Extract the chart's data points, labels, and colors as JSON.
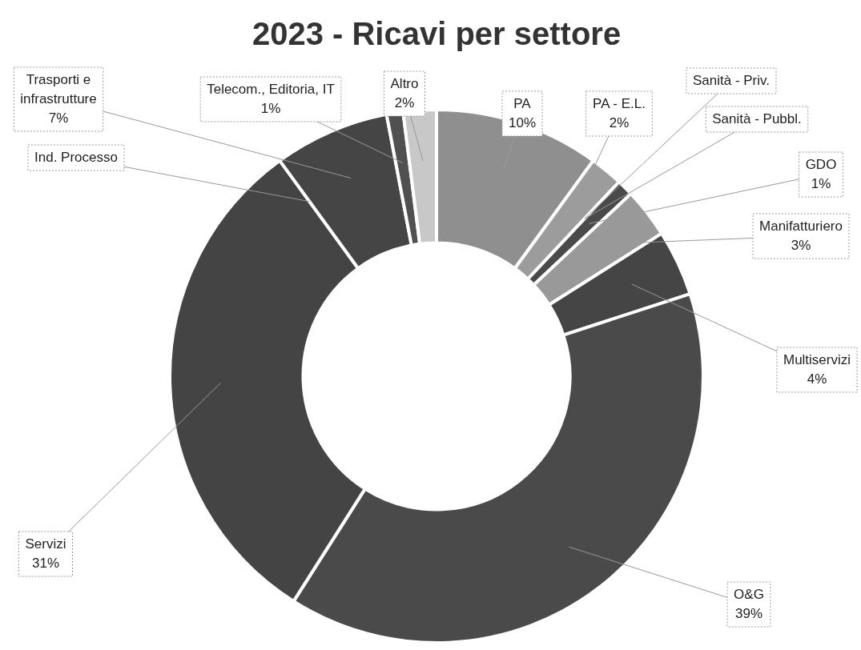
{
  "chart_data": {
    "type": "donut",
    "title": "2023 - Ricavi per settore",
    "categories": [
      "PA",
      "PA - E.L.",
      "Sanità - Priv.",
      "Sanità - Pubbl.",
      "GDO",
      "Manifatturiero",
      "Multiservizi",
      "O&G",
      "Servizi",
      "Ind. Processo",
      "Trasporti e infrastrutture",
      "Telecom., Editoria, IT",
      "Altro"
    ],
    "values": [
      10,
      2,
      0,
      0,
      1,
      3,
      4,
      39,
      31,
      0,
      7,
      1,
      2
    ],
    "value_labels": [
      "10%",
      "2%",
      null,
      null,
      "1%",
      "3%",
      "4%",
      "39%",
      "31%",
      null,
      "7%",
      "1%",
      "2%"
    ],
    "colors": [
      "#8f8f8f",
      "#9c9c9c",
      "#4a4a4a",
      "#5a5a5a",
      "#4a4a4a",
      "#999999",
      "#454545",
      "#4a4a4a",
      "#444444",
      "#555555",
      "#454545",
      "#505050",
      "#c8c8c8"
    ],
    "legend": false
  }
}
